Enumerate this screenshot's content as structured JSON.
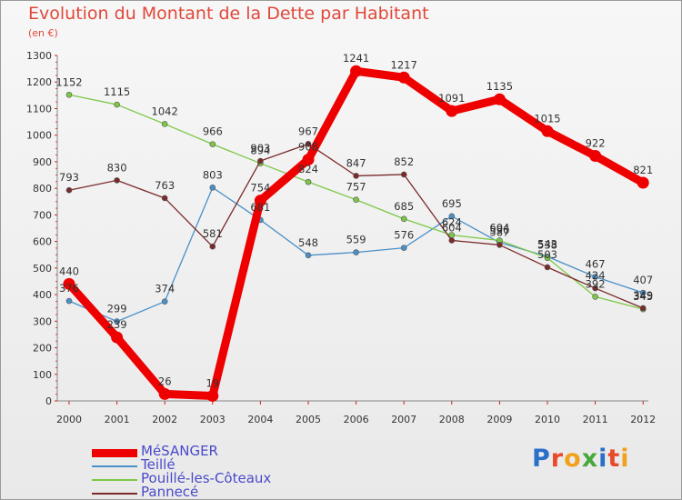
{
  "title": "Evolution du Montant de la Dette par Habitant",
  "subtitle": "(en €)",
  "logo": "Proxiti",
  "chart_data": {
    "type": "line",
    "title": "Evolution du Montant de la Dette par Habitant",
    "ylabel": "(en €)",
    "xlabel": "",
    "ylim": [
      0,
      1300
    ],
    "y_ticks": [
      0,
      100,
      200,
      300,
      400,
      500,
      600,
      700,
      800,
      900,
      1000,
      1100,
      1200,
      1300
    ],
    "x": [
      "2000",
      "2001",
      "2002",
      "2003",
      "2004",
      "2005",
      "2006",
      "2007",
      "2008",
      "2009",
      "2010",
      "2011",
      "2012"
    ],
    "grid": false,
    "legend": "bottom-left",
    "series": [
      {
        "name": "MéSANGER",
        "color": "#ee0000",
        "values": [
          440,
          239,
          26,
          19,
          754,
          908,
          1241,
          1217,
          1091,
          1135,
          1015,
          922,
          821
        ]
      },
      {
        "name": "Teillé",
        "color": "#4a90c8",
        "values": [
          376,
          299,
          374,
          803,
          681,
          548,
          559,
          576,
          695,
          596,
          543,
          467,
          407
        ]
      },
      {
        "name": "Pouillé-les-Côteaux",
        "color": "#7cc846",
        "values": [
          1152,
          1115,
          1042,
          966,
          894,
          824,
          757,
          685,
          624,
          604,
          538,
          392,
          345
        ]
      },
      {
        "name": "Pannecé",
        "color": "#7a2a2a",
        "values": [
          793,
          830,
          763,
          581,
          903,
          967,
          847,
          852,
          604,
          587,
          503,
          424,
          349
        ]
      }
    ]
  }
}
